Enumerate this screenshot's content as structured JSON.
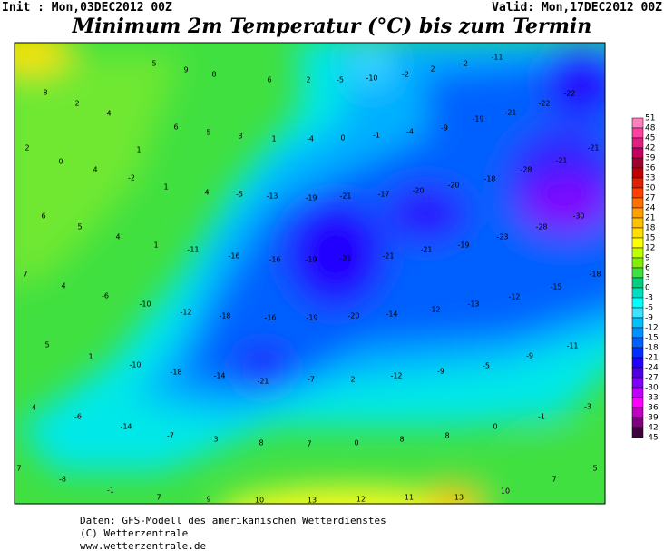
{
  "header": {
    "init": "Init : Mon,03DEC2012 00Z",
    "valid": "Valid: Mon,17DEC2012 00Z",
    "title": "Minimum 2m Temperatur (°C) bis zum Termin"
  },
  "footer": {
    "lines": [
      "Daten: GFS-Modell des amerikanischen Wetterdienstes",
      "(C) Wetterzentrale",
      "www.wetterzentrale.de"
    ]
  },
  "map": {
    "colorbar": {
      "levels": [
        51,
        48,
        45,
        42,
        39,
        36,
        33,
        30,
        27,
        24,
        21,
        18,
        15,
        12,
        9,
        6,
        3,
        0,
        -3,
        -6,
        -9,
        -12,
        -15,
        -18,
        -21,
        -24,
        -27,
        -30,
        -33,
        -36,
        -39,
        -42,
        -45
      ],
      "colors": [
        "#ff80c0",
        "#ff40a0",
        "#e02080",
        "#c00060",
        "#a00030",
        "#c00000",
        "#e02000",
        "#ff4000",
        "#ff7000",
        "#ffa000",
        "#ffc000",
        "#ffe000",
        "#ffff00",
        "#c0ff00",
        "#80f000",
        "#40e040",
        "#00d080",
        "#00e0c0",
        "#00ffff",
        "#40e0ff",
        "#00c0ff",
        "#0090ff",
        "#0060ff",
        "#0030ff",
        "#2000ff",
        "#5000e0",
        "#8000ff",
        "#c000ff",
        "#ff00ff",
        "#c000c0",
        "#800080",
        "#400040"
      ]
    },
    "labels": [
      5,
      9,
      8,
      6,
      2,
      -5,
      -10,
      -2,
      2,
      -2,
      -11,
      8,
      2,
      4,
      6,
      5,
      3,
      1,
      -4,
      0,
      -1,
      -4,
      -9,
      -19,
      -21,
      -22,
      -22,
      2,
      1,
      0,
      4,
      -2,
      1,
      4,
      -5,
      -13,
      -19,
      -21,
      -17,
      -20,
      -20,
      -18,
      -28,
      -21,
      -21,
      6,
      5,
      4,
      1,
      -11,
      -16,
      -16,
      -19,
      -21,
      -21,
      -21,
      -19,
      -23,
      -28,
      -30,
      7,
      4,
      -6,
      -10,
      -12,
      -18,
      -16,
      -19,
      -20,
      -14,
      -12,
      -13,
      -12,
      -15,
      -18,
      5,
      1,
      -10,
      -18,
      -14,
      -21,
      -7,
      2,
      -12,
      -9,
      -5,
      -9,
      -11,
      -4,
      -6,
      -14,
      -7,
      3,
      8,
      7,
      0,
      8,
      8,
      0,
      -1,
      -3,
      7,
      -8,
      -1,
      7,
      9,
      10,
      13,
      12,
      11,
      13,
      10,
      7,
      5
    ]
  }
}
